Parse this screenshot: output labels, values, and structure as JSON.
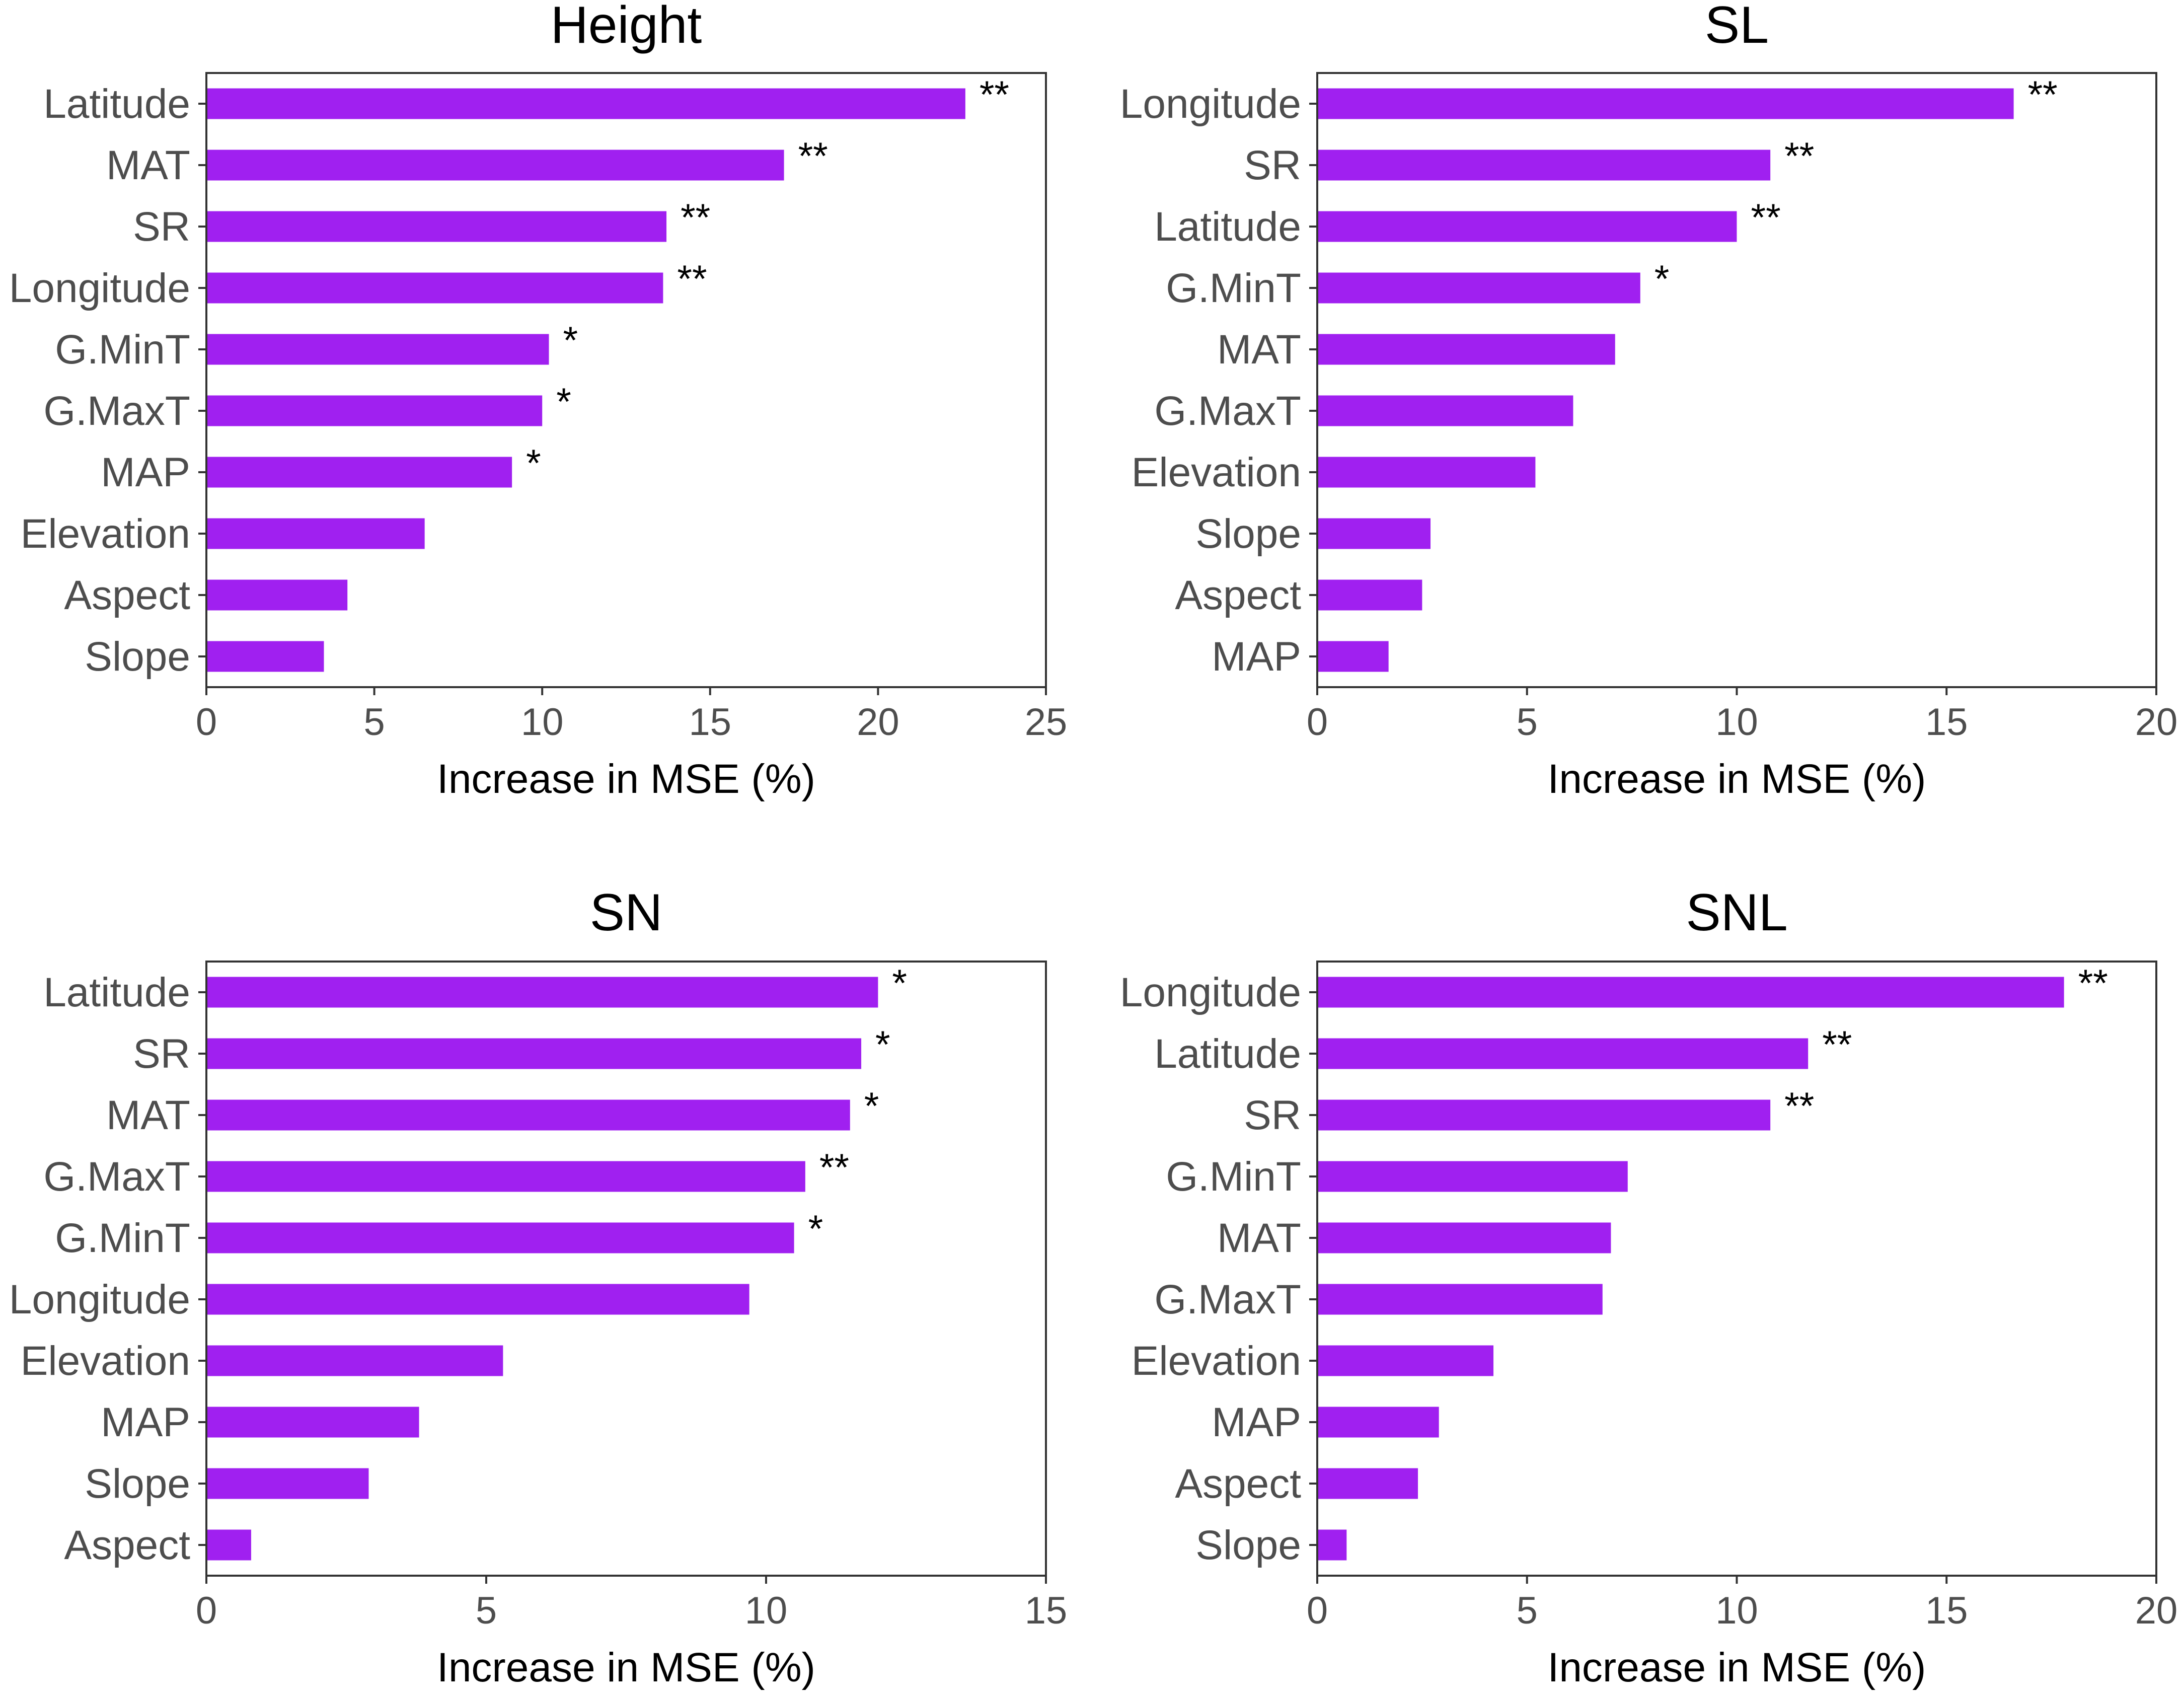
{
  "chart_data": [
    {
      "type": "bar",
      "orientation": "horizontal",
      "title": "Height",
      "xlabel": "Increase in MSE (%)",
      "ylabel": "",
      "xlim": [
        0,
        25
      ],
      "xticks": [
        0,
        5,
        10,
        15,
        20,
        25
      ],
      "xtick_labels": [
        "0",
        "5",
        "10",
        "15",
        "20",
        "25"
      ],
      "bar_color": "#a020f0",
      "categories": [
        "Latitude",
        "MAT",
        "SR",
        "Longitude",
        "G.MinT",
        "G.MaxT",
        "MAP",
        "Elevation",
        "Aspect",
        "Slope"
      ],
      "values": [
        22.6,
        17.2,
        13.7,
        13.6,
        10.2,
        10.0,
        9.1,
        6.5,
        4.2,
        3.5
      ],
      "significance": [
        "**",
        "**",
        "**",
        "**",
        "*",
        "*",
        "*",
        "",
        "",
        ""
      ],
      "grid": false
    },
    {
      "type": "bar",
      "orientation": "horizontal",
      "title": "SL",
      "xlabel": "Increase in MSE (%)",
      "ylabel": "",
      "xlim": [
        0,
        20
      ],
      "xticks": [
        0,
        5,
        10,
        15,
        20
      ],
      "xtick_labels": [
        "0",
        "5",
        "10",
        "15",
        "20"
      ],
      "bar_color": "#a020f0",
      "categories": [
        "Longitude",
        "SR",
        "Latitude",
        "G.MinT",
        "MAT",
        "G.MaxT",
        "Elevation",
        "Slope",
        "Aspect",
        "MAP"
      ],
      "values": [
        16.6,
        10.8,
        10.0,
        7.7,
        7.1,
        6.1,
        5.2,
        2.7,
        2.5,
        1.7
      ],
      "significance": [
        "**",
        "**",
        "**",
        "*",
        "",
        "",
        "",
        "",
        "",
        ""
      ],
      "grid": false
    },
    {
      "type": "bar",
      "orientation": "horizontal",
      "title": "SN",
      "xlabel": "Increase in MSE (%)",
      "ylabel": "",
      "xlim": [
        0,
        15
      ],
      "xticks": [
        0,
        5,
        10,
        15
      ],
      "xtick_labels": [
        "0",
        "5",
        "10",
        "15"
      ],
      "bar_color": "#a020f0",
      "categories": [
        "Latitude",
        "SR",
        "MAT",
        "G.MaxT",
        "G.MinT",
        "Longitude",
        "Elevation",
        "MAP",
        "Slope",
        "Aspect"
      ],
      "values": [
        12.0,
        11.7,
        11.5,
        10.7,
        10.5,
        9.7,
        5.3,
        3.8,
        2.9,
        0.8
      ],
      "significance": [
        "*",
        "*",
        "*",
        "**",
        "*",
        "",
        "",
        "",
        "",
        ""
      ],
      "grid": false
    },
    {
      "type": "bar",
      "orientation": "horizontal",
      "title": "SNL",
      "xlabel": "Increase in MSE (%)",
      "ylabel": "",
      "xlim": [
        0,
        20
      ],
      "xticks": [
        0,
        5,
        10,
        15,
        20
      ],
      "xtick_labels": [
        "0",
        "5",
        "10",
        "15",
        "20"
      ],
      "bar_color": "#a020f0",
      "categories": [
        "Longitude",
        "Latitude",
        "SR",
        "G.MinT",
        "MAT",
        "G.MaxT",
        "Elevation",
        "MAP",
        "Aspect",
        "Slope"
      ],
      "values": [
        17.8,
        11.7,
        10.8,
        7.4,
        7.0,
        6.8,
        4.2,
        2.9,
        2.4,
        0.7
      ],
      "significance": [
        "**",
        "**",
        "**",
        "",
        "",
        "",
        "",
        "",
        "",
        ""
      ],
      "grid": false
    }
  ]
}
